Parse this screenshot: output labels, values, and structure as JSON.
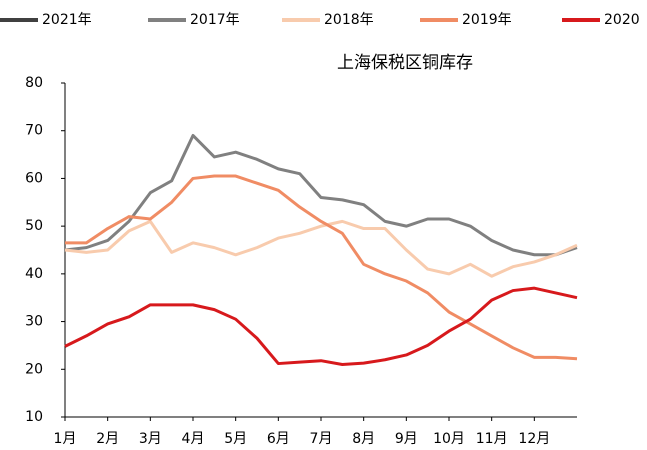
{
  "chart_data": {
    "type": "line",
    "title": "上海保税区铜库存",
    "x": [
      0,
      0.5,
      1,
      1.5,
      2,
      2.5,
      3,
      3.5,
      4,
      4.5,
      5,
      5.5,
      6,
      6.5,
      7,
      7.5,
      8,
      8.5,
      9,
      9.5,
      10,
      10.5,
      11,
      11.5,
      12
    ],
    "xlim": [
      0,
      12
    ],
    "xticks": [
      {
        "value": 0,
        "label": "1月"
      },
      {
        "value": 1,
        "label": "2月"
      },
      {
        "value": 2,
        "label": "3月"
      },
      {
        "value": 3,
        "label": "4月"
      },
      {
        "value": 4,
        "label": "5月"
      },
      {
        "value": 5,
        "label": "6月"
      },
      {
        "value": 6,
        "label": "7月"
      },
      {
        "value": 7,
        "label": "8月"
      },
      {
        "value": 8,
        "label": "9月"
      },
      {
        "value": 9,
        "label": "10月"
      },
      {
        "value": 10,
        "label": "11月"
      },
      {
        "value": 11,
        "label": "12月"
      }
    ],
    "ylim": [
      10,
      80
    ],
    "yticks": [
      10,
      20,
      30,
      40,
      50,
      60,
      70,
      80
    ],
    "legend": "top",
    "series": [
      {
        "name": "2021年",
        "color": "#404040",
        "values": [
          null,
          null,
          null,
          null,
          null,
          null,
          null,
          null,
          null,
          null,
          null,
          null,
          null,
          null,
          null,
          null,
          null,
          null,
          null,
          null,
          null,
          null,
          null,
          null,
          null
        ]
      },
      {
        "name": "2017年",
        "color": "#808080",
        "values": [
          45,
          45.5,
          47,
          51,
          57,
          59.5,
          69,
          64.5,
          65.5,
          64,
          62,
          61,
          56,
          55.5,
          54.5,
          51,
          50,
          51.5,
          51.5,
          50,
          47,
          45,
          44,
          44,
          45.5
        ]
      },
      {
        "name": "2018年",
        "color": "#f8cbad",
        "values": [
          45,
          44.5,
          45,
          49,
          51,
          44.5,
          46.5,
          45.5,
          44,
          45.5,
          47.5,
          48.5,
          50,
          51,
          49.5,
          49.5,
          45,
          41,
          40,
          42,
          39.5,
          41.5,
          42.5,
          44,
          46
        ]
      },
      {
        "name": "2019年",
        "color": "#f08c64",
        "values": [
          46.5,
          46.5,
          49.5,
          52,
          51.5,
          55,
          60,
          60.5,
          60.5,
          59,
          57.5,
          54,
          51,
          48.5,
          42,
          40,
          38.5,
          36,
          32,
          29.5,
          27,
          24.5,
          22.5,
          22.5,
          22.2
        ]
      },
      {
        "name": "2020",
        "color": "#d7191c",
        "values": [
          24.8,
          27,
          29.5,
          31,
          33.5,
          33.5,
          33.5,
          32.5,
          30.5,
          26.5,
          21.2,
          21.5,
          21.8,
          21,
          21.3,
          22,
          23,
          25,
          28,
          30.5,
          34.5,
          36.5,
          37,
          36,
          35
        ]
      }
    ]
  }
}
